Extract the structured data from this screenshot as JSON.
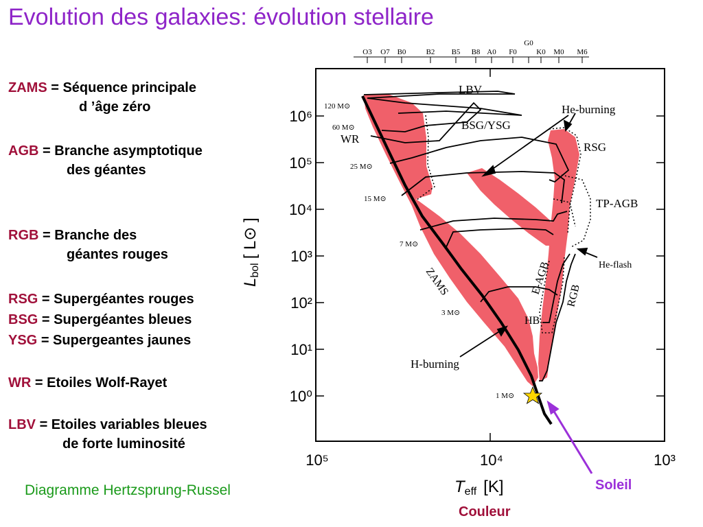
{
  "title": "Evolution des galaxies: évolution stellaire",
  "glossary": [
    {
      "abbr": "ZAMS",
      "text": "= Séquence principale",
      "cont": "d ’âge zéro"
    },
    {
      "abbr": "AGB",
      "text": "= Branche asymptotique",
      "cont": "des géantes"
    },
    {
      "abbr": "RGB",
      "text": "= Branche des",
      "cont": "géantes rouges"
    },
    {
      "abbr": "RSG",
      "text": "= Supergéantes rouges"
    },
    {
      "abbr": "BSG",
      "text": "= Supergéantes bleues"
    },
    {
      "abbr": "YSG",
      "text": "= Supergeantes jaunes"
    },
    {
      "abbr": "WR",
      "text": "= Etoiles Wolf-Rayet"
    },
    {
      "abbr": "LBV",
      "text": "= Etoiles variables bleues",
      "cont": "de forte luminosité"
    }
  ],
  "caption": "Diagramme Hertzsprung-Russel",
  "soleil": "Soleil",
  "couleur": "Couleur",
  "diagram": {
    "y_ticks": [
      "10⁰",
      "10¹",
      "10²",
      "10³",
      "10⁴",
      "10⁵",
      "10⁶"
    ],
    "x_ticks": [
      "10⁵",
      "10⁴",
      "10³"
    ],
    "x_label_T": "T",
    "x_label_sub": "eff",
    "x_label_unit": "[K]",
    "y_label_L": "L",
    "y_label_sub": "bol",
    "y_label_unit": "[ L⊙ ]",
    "spectral_classes": [
      "O3",
      "O7",
      "B0",
      "B2",
      "B5",
      "B8",
      "A0",
      "F0",
      "G0",
      "K0",
      "M0",
      "M6"
    ],
    "masses": [
      "120 M⊙",
      "60 M⊙",
      "25 M⊙",
      "15 M⊙",
      "7 M⊙",
      "3 M⊙",
      "1 M⊙"
    ],
    "regions": [
      "LBV",
      "He-burning",
      "BSG/YSG",
      "WR",
      "RSG",
      "TP-AGB",
      "He-flash",
      "E-AGB",
      "RGB",
      "HB",
      "ZAMS",
      "H-burning"
    ],
    "colors": {
      "band": "#f0606a",
      "title": "#8e24c8",
      "abbr": "#a0103a",
      "caption": "#1a9a1a",
      "arrow": "#9b30d9",
      "sun": "#ffd700"
    }
  }
}
